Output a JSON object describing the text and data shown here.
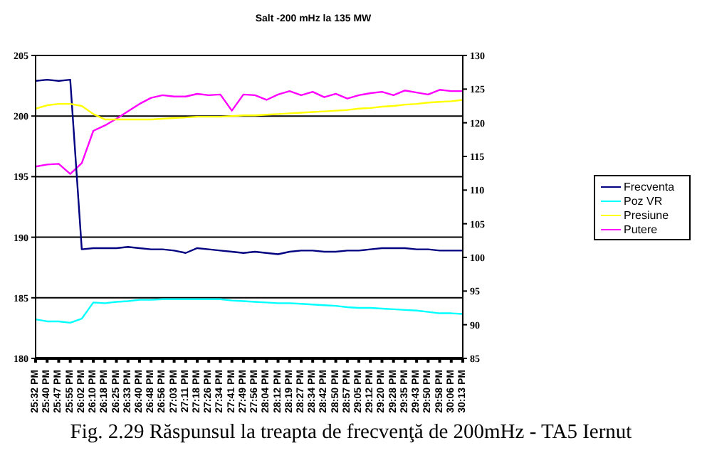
{
  "chart_data": {
    "type": "line",
    "title": "Salt -200 mHz la 135 MW",
    "annotations": [
      "Fig. 2.29 Răspunsul la treapta de frecvenţă de 200mHz - TA5 Iernut"
    ],
    "categories": [
      "25:32 PM",
      "25:40 PM",
      "25:47 PM",
      "25:55 PM",
      "26:02 PM",
      "26:10 PM",
      "26:18 PM",
      "26:25 PM",
      "26:33 PM",
      "26:40 PM",
      "26:48 PM",
      "26:56 PM",
      "27:03 PM",
      "27:11 PM",
      "27:18 PM",
      "27:26 PM",
      "27:34 PM",
      "27:41 PM",
      "27:49 PM",
      "27:56 PM",
      "28:04 PM",
      "28:12 PM",
      "28:19 PM",
      "28:27 PM",
      "28:34 PM",
      "28:42 PM",
      "28:50 PM",
      "28:57 PM",
      "29:05 PM",
      "29:12 PM",
      "29:20 PM",
      "29:28 PM",
      "29:35 PM",
      "29:43 PM",
      "29:50 PM",
      "29:58 PM",
      "30:06 PM",
      "30:13 PM"
    ],
    "ylim": [
      180,
      205
    ],
    "yticks": [
      180,
      185,
      190,
      195,
      200,
      205
    ],
    "y2lim": [
      85,
      130
    ],
    "y2ticks": [
      85,
      90,
      95,
      100,
      105,
      110,
      115,
      120,
      125,
      130
    ],
    "grid": "y",
    "legend": "right",
    "marker": "none",
    "line_style": "solid",
    "series": [
      {
        "name": "Putere",
        "color": "#ff00ff",
        "axis": "y2",
        "values": [
          113.5,
          113.8,
          113.9,
          112.4,
          114,
          118.8,
          119.6,
          120.6,
          121.7,
          122.8,
          123.7,
          124.1,
          123.9,
          123.9,
          124.3,
          124.1,
          124.2,
          121.8,
          124.2,
          124.1,
          123.4,
          124.2,
          124.7,
          124.1,
          124.6,
          123.8,
          124.3,
          123.6,
          124.1,
          124.4,
          124.6,
          124.1,
          124.8,
          124.5,
          124.2,
          124.9,
          124.7,
          124.7
        ]
      },
      {
        "name": "Frecventa",
        "color": "#000080",
        "axis": "y",
        "values": [
          202.9,
          203,
          202.9,
          203,
          189,
          189.1,
          189.1,
          189.1,
          189.2,
          189.1,
          189,
          189,
          188.9,
          188.7,
          189.1,
          189,
          188.9,
          188.8,
          188.7,
          188.8,
          188.7,
          188.6,
          188.8,
          188.9,
          188.9,
          188.8,
          188.8,
          188.9,
          188.9,
          189,
          189.1,
          189.1,
          189.1,
          189,
          189,
          188.9,
          188.9,
          188.9
        ]
      },
      {
        "name": "Presiune",
        "color": "#ffff00",
        "axis": "y2",
        "values": [
          122.1,
          122.6,
          122.8,
          122.8,
          122.5,
          121.3,
          120.5,
          120.5,
          120.5,
          120.5,
          120.5,
          120.6,
          120.7,
          120.8,
          120.9,
          120.9,
          120.9,
          121,
          121.1,
          121.1,
          121.2,
          121.3,
          121.4,
          121.5,
          121.6,
          121.7,
          121.8,
          121.9,
          122.1,
          122.2,
          122.4,
          122.5,
          122.7,
          122.8,
          123,
          123.1,
          123.2,
          123.4
        ]
      },
      {
        "name": "Poz VR",
        "color": "#00ffff",
        "axis": "y2",
        "values": [
          90.8,
          90.5,
          90.5,
          90.3,
          90.9,
          93.3,
          93.2,
          93.4,
          93.5,
          93.7,
          93.7,
          93.8,
          93.8,
          93.8,
          93.8,
          93.8,
          93.8,
          93.6,
          93.5,
          93.4,
          93.3,
          93.2,
          93.2,
          93.1,
          93,
          92.9,
          92.8,
          92.6,
          92.5,
          92.5,
          92.4,
          92.3,
          92.2,
          92.1,
          91.9,
          91.7,
          91.7,
          91.6
        ]
      }
    ]
  }
}
